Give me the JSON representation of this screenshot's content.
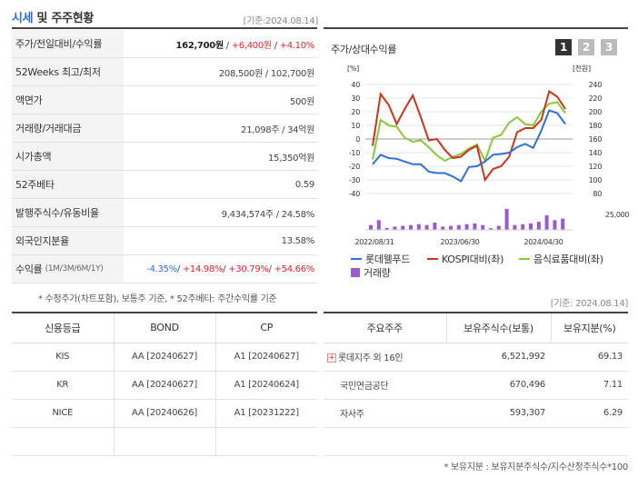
{
  "header": {
    "title_main": "시세",
    "title_rest": " 및 주주현황",
    "date_note": "[기준:2024.08.14]"
  },
  "market": {
    "rows": [
      {
        "label": "주가/전일대비/수익률",
        "price": "162,700원",
        "change": "+6,400원",
        "rate": "+4.10%"
      },
      {
        "label": "52Weeks 최고/최저",
        "value": "208,500원 / 102,700원"
      },
      {
        "label": "액면가",
        "value": "500원"
      },
      {
        "label": "거래량/거래대금",
        "value": "21,098주 / 34억원"
      },
      {
        "label": "시가총액",
        "value": "15,350억원"
      },
      {
        "label": "52주베타",
        "value": "0.59"
      },
      {
        "label": "발행주식수/유동비율",
        "value": "9,434,574주 / 24.58%"
      },
      {
        "label": "외국인지분율",
        "value": "13.58%"
      },
      {
        "label": "수익률",
        "label_sub": "(1M/3M/6M/1Y)",
        "r1": "-4.35%",
        "r2": "+14.98%",
        "r3": "+30.79%",
        "r4": "+54.66%"
      }
    ],
    "note": "* 수정주가(차트포함), 보통주 기준, * 52주베타: 주간수익률 기준"
  },
  "chart_panel": {
    "title": "주가/상대수익률",
    "pages": [
      "1",
      "2",
      "3"
    ],
    "legend": [
      "롯데웰푸드",
      "KOSPI대비(좌)",
      "음식료품대비(좌)",
      "거래량"
    ],
    "volume_label": "25,000"
  },
  "chart_data": {
    "type": "line",
    "left_axis": {
      "unit": "[%]",
      "ticks": [
        "40",
        "30",
        "20",
        "10",
        "0",
        "-10",
        "-20",
        "-30",
        "-40"
      ],
      "ylim": [
        -40,
        40
      ]
    },
    "right_axis": {
      "unit": "[천원]",
      "ticks": [
        "240",
        "220",
        "200",
        "180",
        "160",
        "140",
        "120",
        "100",
        "80"
      ],
      "ylim": [
        80,
        240
      ]
    },
    "x_labels": [
      "2022/08/31",
      "2023/06/30",
      "2024/04/30"
    ],
    "colors": {
      "price": "#2f6fd6",
      "kospi": "#c8361e",
      "food": "#8cc63f",
      "volume": "#9b59d0"
    },
    "series": [
      {
        "name": "롯데웰푸드",
        "axis": "right",
        "values": [
          123,
          137,
          132,
          131,
          127,
          123,
          123,
          112,
          110,
          110,
          105,
          98,
          119,
          120,
          127,
          137,
          138,
          140,
          148,
          153,
          147,
          172,
          202,
          198,
          182
        ]
      },
      {
        "name": "KOSPI대비(좌)",
        "axis": "left",
        "values": [
          -5,
          33,
          25,
          11,
          22,
          32,
          16,
          -1,
          0,
          -8,
          -14,
          -13,
          -8,
          -5,
          -30,
          -22,
          -20,
          -13,
          5,
          8,
          8,
          14,
          35,
          31,
          22
        ]
      },
      {
        "name": "음식료품대비(좌)",
        "axis": "left",
        "values": [
          -15,
          14,
          10,
          9,
          1,
          -2,
          -1,
          -6,
          -12,
          -16,
          -13,
          -11,
          -7,
          -4,
          -16,
          1,
          3,
          12,
          16,
          11,
          10,
          20,
          26,
          27,
          19
        ]
      }
    ],
    "volume": [
      6000,
      12000,
      2500,
      4000,
      5000,
      6000,
      7000,
      6000,
      9000,
      4000,
      5000,
      6000,
      7000,
      8000,
      6000,
      2000,
      5000,
      26000,
      6000,
      7000,
      8000,
      10000,
      18000,
      12000,
      14000
    ]
  },
  "mid_date": "[기준: 2024.08.14]",
  "credit": {
    "headers": [
      "신용등급",
      "BOND",
      "CP"
    ],
    "rows": [
      [
        "KIS",
        "AA [20240627]",
        "A1 [20240627]"
      ],
      [
        "KR",
        "AA [20240627]",
        "A1 [20240624]"
      ],
      [
        "NICE",
        "AA [20240626]",
        "A1 [20231222]"
      ]
    ]
  },
  "holders": {
    "headers": [
      "주요주주",
      "보유주식수(보통)",
      "보유지분(%)"
    ],
    "rows": [
      {
        "name": "롯데지주 외 16인",
        "shares": "6,521,992",
        "pct": "69.13"
      },
      {
        "name": "국민연금공단",
        "shares": "670,496",
        "pct": "7.11"
      },
      {
        "name": "자사주",
        "shares": "593,307",
        "pct": "6.29"
      }
    ],
    "note": "* 보유지분 : 보유지분주식수/지수산정주식수*100"
  }
}
